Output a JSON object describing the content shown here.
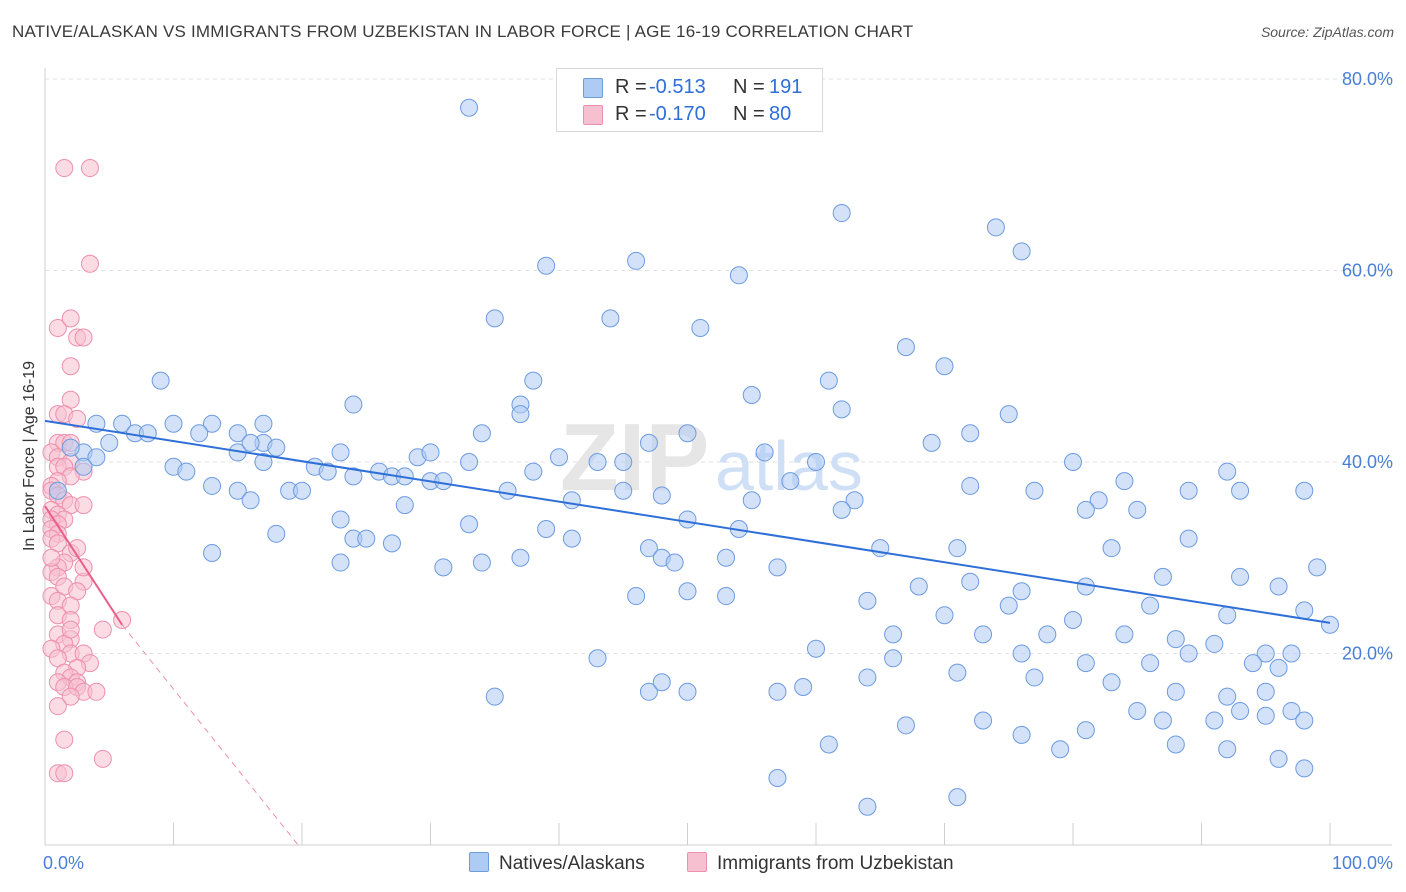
{
  "title": "NATIVE/ALASKAN VS IMMIGRANTS FROM UZBEKISTAN IN LABOR FORCE | AGE 16-19 CORRELATION CHART",
  "source": "Source: ZipAtlas.com",
  "watermark": "ZIPatlas",
  "colors": {
    "blue_fill": "#aecbf3",
    "blue_stroke": "#6d9be0",
    "blue_line": "#2f6fd8",
    "pink_fill": "#f7c0d0",
    "pink_stroke": "#ee8fae",
    "pink_line": "#e8608b",
    "tick_text": "#4a7fd6",
    "grid": "#e2e2e2"
  },
  "legend_top": {
    "rows": [
      {
        "r_label": "R =",
        "r_value": "-0.513",
        "n_label": "N =",
        "n_value": "191"
      },
      {
        "r_label": "R =",
        "r_value": "-0.170",
        "n_label": "N =",
        "n_value": "80"
      }
    ]
  },
  "legend_bottom": {
    "items": [
      "Natives/Alaskans",
      "Immigrants from Uzbekistan"
    ]
  },
  "chart_data": {
    "type": "scatter",
    "title": "NATIVE/ALASKAN VS IMMIGRANTS FROM UZBEKISTAN IN LABOR FORCE | AGE 16-19 CORRELATION CHART",
    "xlabel": "",
    "ylabel": "In Labor Force | Age 16-19",
    "xlim": [
      0,
      100
    ],
    "ylim": [
      0,
      80
    ],
    "x_tick_labels": [
      "0.0%",
      "100.0%"
    ],
    "y_ticks": [
      20,
      40,
      60,
      80
    ],
    "y_tick_labels": [
      "20.0%",
      "40.0%",
      "60.0%",
      "80.0%"
    ],
    "grid": true,
    "series": [
      {
        "name": "Natives/Alaskans",
        "color": "#aecbf3",
        "trend": {
          "x": [
            0,
            100
          ],
          "y": [
            44.3,
            23.2
          ]
        },
        "points": [
          [
            33,
            77
          ],
          [
            62,
            66
          ],
          [
            74,
            64.5
          ],
          [
            76,
            62
          ],
          [
            39,
            60.5
          ],
          [
            46,
            61
          ],
          [
            54,
            59.5
          ],
          [
            35,
            55
          ],
          [
            44,
            55
          ],
          [
            51,
            54
          ],
          [
            67,
            52
          ],
          [
            70,
            50
          ],
          [
            9,
            48.5
          ],
          [
            38,
            48.5
          ],
          [
            55,
            47
          ],
          [
            61,
            48.5
          ],
          [
            62,
            45.5
          ],
          [
            37,
            46
          ],
          [
            24,
            46
          ],
          [
            37,
            45
          ],
          [
            4,
            44
          ],
          [
            6,
            44
          ],
          [
            10,
            44
          ],
          [
            13,
            44
          ],
          [
            17,
            44
          ],
          [
            7,
            43
          ],
          [
            8,
            43
          ],
          [
            12,
            43
          ],
          [
            15,
            43
          ],
          [
            17,
            42
          ],
          [
            34,
            43
          ],
          [
            50,
            43
          ],
          [
            75,
            45
          ],
          [
            72,
            43
          ],
          [
            69,
            42
          ],
          [
            47,
            42
          ],
          [
            5,
            42
          ],
          [
            3,
            41
          ],
          [
            2,
            41.5
          ],
          [
            4,
            40.5
          ],
          [
            15,
            41
          ],
          [
            16,
            42
          ],
          [
            18,
            41.5
          ],
          [
            23,
            41
          ],
          [
            29,
            40.5
          ],
          [
            30,
            41
          ],
          [
            40,
            40.5
          ],
          [
            43,
            40
          ],
          [
            45,
            40
          ],
          [
            60,
            40
          ],
          [
            56,
            41
          ],
          [
            80,
            40
          ],
          [
            92,
            39
          ],
          [
            3,
            39.5
          ],
          [
            10,
            39.5
          ],
          [
            11,
            39
          ],
          [
            17,
            40
          ],
          [
            21,
            39.5
          ],
          [
            22,
            39
          ],
          [
            24,
            38.5
          ],
          [
            26,
            39
          ],
          [
            27,
            38.5
          ],
          [
            28,
            38.5
          ],
          [
            30,
            38
          ],
          [
            33,
            40
          ],
          [
            38,
            39
          ],
          [
            31,
            38
          ],
          [
            13,
            37.5
          ],
          [
            15,
            37
          ],
          [
            19,
            37
          ],
          [
            20,
            37
          ],
          [
            36,
            37
          ],
          [
            45,
            37
          ],
          [
            58,
            38
          ],
          [
            63,
            36
          ],
          [
            72,
            37.5
          ],
          [
            77,
            37
          ],
          [
            82,
            36
          ],
          [
            84,
            38
          ],
          [
            89,
            37
          ],
          [
            93,
            37
          ],
          [
            98,
            37
          ],
          [
            1,
            37
          ],
          [
            16,
            36
          ],
          [
            28,
            35.5
          ],
          [
            41,
            36
          ],
          [
            48,
            36.5
          ],
          [
            55,
            36
          ],
          [
            62,
            35
          ],
          [
            81,
            35
          ],
          [
            85,
            35
          ],
          [
            23,
            34
          ],
          [
            33,
            33.5
          ],
          [
            50,
            34
          ],
          [
            54,
            33
          ],
          [
            18,
            32.5
          ],
          [
            24,
            32
          ],
          [
            25,
            32
          ],
          [
            27,
            31.5
          ],
          [
            39,
            33
          ],
          [
            41,
            32
          ],
          [
            47,
            31
          ],
          [
            65,
            31
          ],
          [
            71,
            31
          ],
          [
            83,
            31
          ],
          [
            89,
            32
          ],
          [
            13,
            30.5
          ],
          [
            23,
            29.5
          ],
          [
            37,
            30
          ],
          [
            31,
            29
          ],
          [
            34,
            29.5
          ],
          [
            48,
            30
          ],
          [
            49,
            29.5
          ],
          [
            53,
            30
          ],
          [
            57,
            29
          ],
          [
            68,
            27
          ],
          [
            72,
            27.5
          ],
          [
            76,
            26.5
          ],
          [
            81,
            27
          ],
          [
            87,
            28
          ],
          [
            93,
            28
          ],
          [
            96,
            27
          ],
          [
            99,
            29
          ],
          [
            46,
            26
          ],
          [
            50,
            26.5
          ],
          [
            53,
            26
          ],
          [
            64,
            25.5
          ],
          [
            75,
            25
          ],
          [
            86,
            25
          ],
          [
            92,
            24
          ],
          [
            98,
            24.5
          ],
          [
            80,
            23.5
          ],
          [
            70,
            24
          ],
          [
            73,
            22
          ],
          [
            66,
            22
          ],
          [
            78,
            22
          ],
          [
            84,
            22
          ],
          [
            88,
            21.5
          ],
          [
            91,
            21
          ],
          [
            95,
            20
          ],
          [
            97,
            20
          ],
          [
            100,
            23
          ],
          [
            60,
            20.5
          ],
          [
            66,
            19.5
          ],
          [
            76,
            20
          ],
          [
            81,
            19
          ],
          [
            86,
            19
          ],
          [
            89,
            20
          ],
          [
            94,
            19
          ],
          [
            96,
            18.5
          ],
          [
            43,
            19.5
          ],
          [
            64,
            17.5
          ],
          [
            71,
            18
          ],
          [
            77,
            17.5
          ],
          [
            83,
            17
          ],
          [
            88,
            16
          ],
          [
            92,
            15.5
          ],
          [
            95,
            16
          ],
          [
            35,
            15.5
          ],
          [
            47,
            16
          ],
          [
            48,
            17
          ],
          [
            50,
            16
          ],
          [
            57,
            16
          ],
          [
            59,
            16.5
          ],
          [
            85,
            14
          ],
          [
            87,
            13
          ],
          [
            91,
            13
          ],
          [
            93,
            14
          ],
          [
            95,
            13.5
          ],
          [
            97,
            14
          ],
          [
            98,
            13
          ],
          [
            81,
            12
          ],
          [
            73,
            13
          ],
          [
            76,
            11.5
          ],
          [
            79,
            10
          ],
          [
            67,
            12.5
          ],
          [
            61,
            10.5
          ],
          [
            88,
            10.5
          ],
          [
            92,
            10
          ],
          [
            64,
            4
          ],
          [
            71,
            5
          ],
          [
            96,
            9
          ],
          [
            98,
            8
          ],
          [
            57,
            7
          ]
        ]
      },
      {
        "name": "Immigrants from Uzbekistan",
        "color": "#f7c0d0",
        "trend": {
          "x": [
            0,
            6
          ],
          "y": [
            35.4,
            23.0
          ]
        },
        "trend_extension": {
          "x": [
            6,
            19.7
          ],
          "y": [
            23.0,
            0
          ]
        },
        "points": [
          [
            1.5,
            70.7
          ],
          [
            3.5,
            70.7
          ],
          [
            3.5,
            60.7
          ],
          [
            1,
            54
          ],
          [
            2,
            55
          ],
          [
            2.5,
            53
          ],
          [
            3,
            53
          ],
          [
            2,
            50
          ],
          [
            2,
            46.5
          ],
          [
            1,
            45
          ],
          [
            1.5,
            45
          ],
          [
            2.5,
            44.5
          ],
          [
            1,
            42
          ],
          [
            1.5,
            42
          ],
          [
            2,
            42
          ],
          [
            0.5,
            41
          ],
          [
            1,
            40.5
          ],
          [
            2,
            40
          ],
          [
            1,
            39.5
          ],
          [
            1.5,
            39.5
          ],
          [
            3,
            39
          ],
          [
            2,
            38.5
          ],
          [
            1,
            38
          ],
          [
            0.5,
            37.5
          ],
          [
            0.5,
            37
          ],
          [
            1,
            36.5
          ],
          [
            1.5,
            36
          ],
          [
            2,
            35.5
          ],
          [
            3,
            35.5
          ],
          [
            0.5,
            35
          ],
          [
            1,
            34.5
          ],
          [
            1.5,
            34
          ],
          [
            0.5,
            34
          ],
          [
            1,
            33.5
          ],
          [
            0.5,
            33
          ],
          [
            1,
            32.5
          ],
          [
            0.5,
            32
          ],
          [
            1,
            31.5
          ],
          [
            2,
            30.5
          ],
          [
            1.5,
            29.5
          ],
          [
            1,
            29
          ],
          [
            0.5,
            28.5
          ],
          [
            1,
            28
          ],
          [
            3,
            27.5
          ],
          [
            1.5,
            27
          ],
          [
            2.5,
            26.5
          ],
          [
            0.5,
            26
          ],
          [
            1,
            25.5
          ],
          [
            2,
            25
          ],
          [
            1,
            24
          ],
          [
            2,
            23.5
          ],
          [
            6,
            23.5
          ],
          [
            4.5,
            22.5
          ],
          [
            1,
            22
          ],
          [
            2,
            21.5
          ],
          [
            1.5,
            21
          ],
          [
            0.5,
            20.5
          ],
          [
            2,
            20
          ],
          [
            3,
            20
          ],
          [
            1,
            19.5
          ],
          [
            3.5,
            19
          ],
          [
            2.5,
            18.5
          ],
          [
            1.5,
            18
          ],
          [
            2,
            17.5
          ],
          [
            1,
            17
          ],
          [
            2.5,
            17
          ],
          [
            1.5,
            16.5
          ],
          [
            2.5,
            16.5
          ],
          [
            3,
            16
          ],
          [
            4,
            16
          ],
          [
            2,
            15.5
          ],
          [
            1,
            14.5
          ],
          [
            1.5,
            11
          ],
          [
            4.5,
            9
          ],
          [
            1,
            7.5
          ],
          [
            1.5,
            7.5
          ],
          [
            2,
            22.5
          ],
          [
            0.5,
            30
          ],
          [
            2.5,
            31
          ],
          [
            3,
            29
          ]
        ]
      }
    ]
  }
}
